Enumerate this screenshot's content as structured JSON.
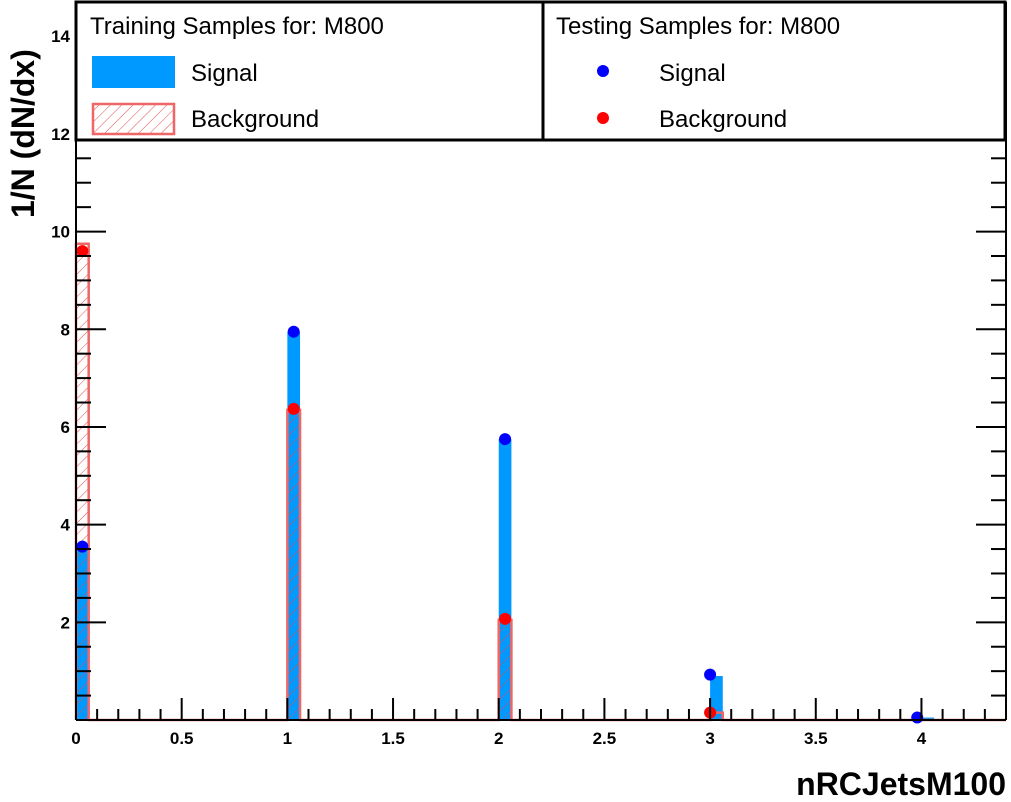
{
  "chart_data": {
    "type": "bar",
    "xlabel": "nRCJetsM100",
    "ylabel": "1/N (dN/dx)",
    "xlim": [
      0,
      4.4
    ],
    "ylim": [
      0,
      14.7
    ],
    "x_ticks": [
      "0",
      "0.5",
      "1",
      "1.5",
      "2",
      "2.5",
      "3",
      "3.5",
      "4"
    ],
    "y_ticks": [
      "2",
      "4",
      "6",
      "8",
      "10",
      "12",
      "14"
    ],
    "bins": [
      {
        "lo": 0.0,
        "hi": 0.06
      },
      {
        "lo": 1.0,
        "hi": 1.06
      },
      {
        "lo": 2.0,
        "hi": 2.06
      },
      {
        "lo": 3.0,
        "hi": 3.06
      },
      {
        "lo": 4.0,
        "hi": 4.06
      }
    ],
    "series": [
      {
        "name": "Signal",
        "kind": "training",
        "style": "filled",
        "color": "#0099ff",
        "values": [
          3.5,
          7.95,
          5.75,
          0.9,
          0.05
        ]
      },
      {
        "name": "Background",
        "kind": "training",
        "style": "hatched",
        "color": "#ee6666",
        "values": [
          9.75,
          6.35,
          2.05,
          0.15,
          0.0
        ]
      },
      {
        "name": "Signal",
        "kind": "testing",
        "style": "marker",
        "color": "#0000ff",
        "x": [
          0.03,
          1.03,
          2.03,
          3.0,
          3.98
        ],
        "values": [
          3.55,
          7.95,
          5.75,
          0.93,
          0.05
        ]
      },
      {
        "name": "Background",
        "kind": "testing",
        "style": "marker",
        "color": "#ff0000",
        "x": [
          0.03,
          1.03,
          2.03,
          3.0
        ],
        "values": [
          9.6,
          6.37,
          2.07,
          0.15
        ]
      }
    ],
    "legend": {
      "placement": "top",
      "training_title": "Training Samples for: M800",
      "testing_title": "Testing Samples for: M800",
      "training_entries": [
        "Signal",
        "Background"
      ],
      "testing_entries": [
        "Signal",
        "Background"
      ]
    },
    "grid": false
  }
}
